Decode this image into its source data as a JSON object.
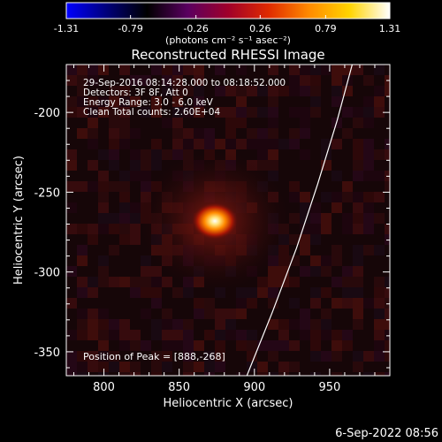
{
  "colorbar": {
    "ticks": [
      "-1.31",
      "-0.79",
      "-0.26",
      "0.26",
      "0.79",
      "1.31"
    ],
    "unit_label": "(photons cm⁻² s⁻¹ asec⁻²)",
    "range": [
      -1.31,
      1.31
    ],
    "stops": [
      "#0000ff",
      "#00007a",
      "#000000",
      "#5a0060",
      "#a0002a",
      "#e02a00",
      "#ff8a00",
      "#ffd400",
      "#ffffff"
    ]
  },
  "chart_data": {
    "type": "heatmap",
    "title": "Reconstructed RHESSI Image",
    "xlabel": "Heliocentric X (arcsec)",
    "ylabel": "Heliocentric Y (arcsec)",
    "xlim": [
      775,
      990
    ],
    "ylim": [
      -365,
      -170
    ],
    "xticks": [
      800,
      850,
      900,
      950
    ],
    "yticks": [
      -200,
      -250,
      -300,
      -350
    ],
    "annotations": [
      "29-Sep-2016 08:14:28.000 to 08:18:52.000",
      "Detectors: 3F 8F, Att 0",
      "Energy Range: 3.0 - 6.0 keV",
      "Clean    Total counts: 2.60E+04"
    ],
    "peak_label": "Position of Peak = [888,-268]",
    "peak": [
      888,
      -268
    ],
    "limb_curve": [
      [
        895,
        -365
      ],
      [
        912,
        -325
      ],
      [
        928,
        -285
      ],
      [
        942,
        -245
      ],
      [
        955,
        -205
      ],
      [
        965,
        -170
      ]
    ]
  },
  "footer": {
    "date": "6-Sep-2022 08:56"
  }
}
